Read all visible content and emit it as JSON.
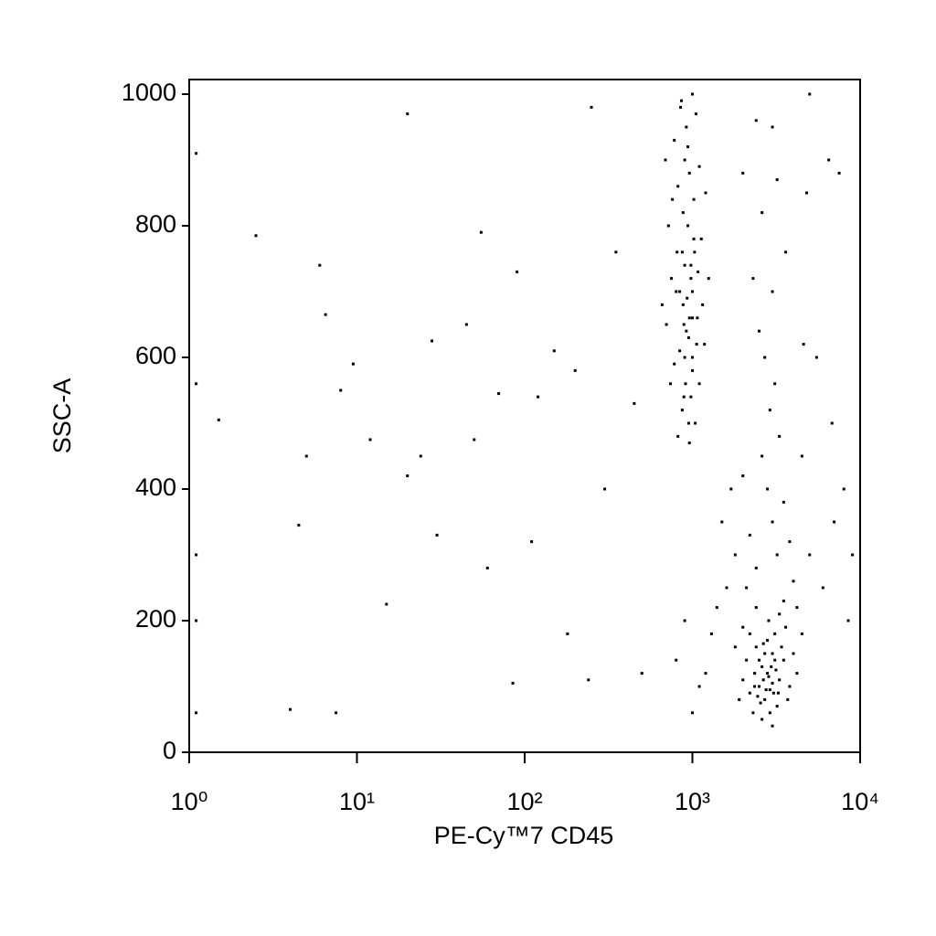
{
  "chart_data": {
    "type": "scatter",
    "x_label": "PE-Cy™7 CD45",
    "y_label": "SSC-A",
    "xlog": true,
    "color": "#000000",
    "xlim": [
      1,
      10000
    ],
    "xticks": [
      {
        "value": 1,
        "label": "10⁰"
      },
      {
        "value": 10,
        "label": "10¹"
      },
      {
        "value": 100,
        "label": "10²"
      },
      {
        "value": 1000,
        "label": "10³"
      },
      {
        "value": 10000,
        "label": "10⁴"
      }
    ],
    "ylim": [
      0,
      1000
    ],
    "yticks": [
      0,
      200,
      400,
      600,
      800,
      1000
    ],
    "x": [
      850,
      920,
      1000,
      780,
      1050,
      900,
      960,
      820,
      1100,
      880,
      940,
      760,
      1020,
      980,
      870,
      1080,
      800,
      930,
      1000,
      890,
      950,
      840,
      1060,
      780,
      910,
      980,
      870,
      1040,
      820,
      960,
      900,
      1000,
      1150,
      700,
      720,
      1200,
      750,
      1100,
      880,
      1020,
      940,
      860,
      1000,
      920,
      980,
      1030,
      810,
      890,
      950,
      1130,
      690,
      740,
      1180,
      660,
      1250,
      1000,
      900,
      960,
      840,
      1070,
      2500,
      2800,
      3000,
      2200,
      3300,
      2700,
      2900,
      3500,
      2400,
      3100,
      2600,
      2000,
      3800,
      2750,
      3200,
      2350,
      2850,
      3050,
      2550,
      3400,
      2950,
      2650,
      3150,
      2450,
      2100,
      4000,
      3600,
      2300,
      3700,
      2800,
      3000,
      2600,
      1900,
      2200,
      3300,
      4200,
      2500,
      2900,
      3100,
      2700,
      1800,
      2400,
      3500,
      2000,
      4500,
      2850,
      3250,
      2650,
      3000,
      2350,
      2800,
      3000,
      2600,
      3200,
      2400,
      3500,
      2200,
      4000,
      1800,
      3300,
      2900,
      2700,
      3100,
      5000,
      6000,
      7000,
      1600,
      1400,
      1500,
      2000,
      2500,
      3000,
      3600,
      2300,
      4500,
      5500,
      8000,
      7500,
      6500,
      4800,
      3000,
      2400,
      5000,
      8500,
      9000,
      1300,
      1700,
      3800,
      4200,
      2100,
      1200,
      1000,
      900,
      800,
      1100,
      2600,
      3200,
      2000,
      4600,
      6800,
      1.1,
      1.1,
      1.1,
      1.1,
      1.1,
      1.5,
      2.5,
      4,
      4.5,
      5,
      6,
      6.5,
      7.5,
      8,
      9.5,
      12,
      15,
      20,
      20,
      24,
      28,
      30,
      45,
      50,
      55,
      60,
      70,
      85,
      90,
      110,
      120,
      150,
      180,
      200,
      240,
      250,
      300,
      350,
      450,
      500
    ],
    "values": [
      980,
      950,
      1000,
      930,
      970,
      900,
      880,
      860,
      890,
      820,
      800,
      840,
      780,
      740,
      760,
      730,
      700,
      690,
      660,
      650,
      630,
      610,
      620,
      590,
      560,
      540,
      520,
      500,
      480,
      470,
      600,
      700,
      680,
      650,
      800,
      850,
      720,
      560,
      680,
      840,
      920,
      990,
      600,
      640,
      720,
      760,
      760,
      540,
      500,
      780,
      900,
      560,
      620,
      680,
      720,
      580,
      740,
      660,
      700,
      660,
      100,
      120,
      150,
      90,
      110,
      80,
      60,
      140,
      160,
      180,
      130,
      110,
      100,
      95,
      70,
      120,
      200,
      90,
      75,
      160,
      130,
      110,
      125,
      85,
      140,
      150,
      190,
      60,
      80,
      170,
      105,
      50,
      80,
      180,
      210,
      120,
      140,
      95,
      140,
      150,
      160,
      220,
      230,
      190,
      180,
      115,
      90,
      165,
      40,
      100,
      400,
      350,
      450,
      300,
      280,
      380,
      330,
      260,
      300,
      480,
      520,
      600,
      560,
      300,
      250,
      350,
      250,
      220,
      350,
      420,
      640,
      700,
      760,
      720,
      450,
      600,
      400,
      880,
      900,
      850,
      950,
      960,
      1000,
      200,
      300,
      180,
      400,
      320,
      220,
      250,
      120,
      60,
      200,
      140,
      100,
      820,
      870,
      880,
      620,
      500,
      60,
      200,
      300,
      560,
      910,
      505,
      785,
      65,
      345,
      450,
      740,
      665,
      60,
      550,
      590,
      475,
      225,
      420,
      970,
      450,
      625,
      330,
      650,
      475,
      790,
      280,
      545,
      105,
      730,
      320,
      540,
      610,
      180,
      580,
      110,
      980,
      400,
      760,
      530,
      120
    ]
  }
}
